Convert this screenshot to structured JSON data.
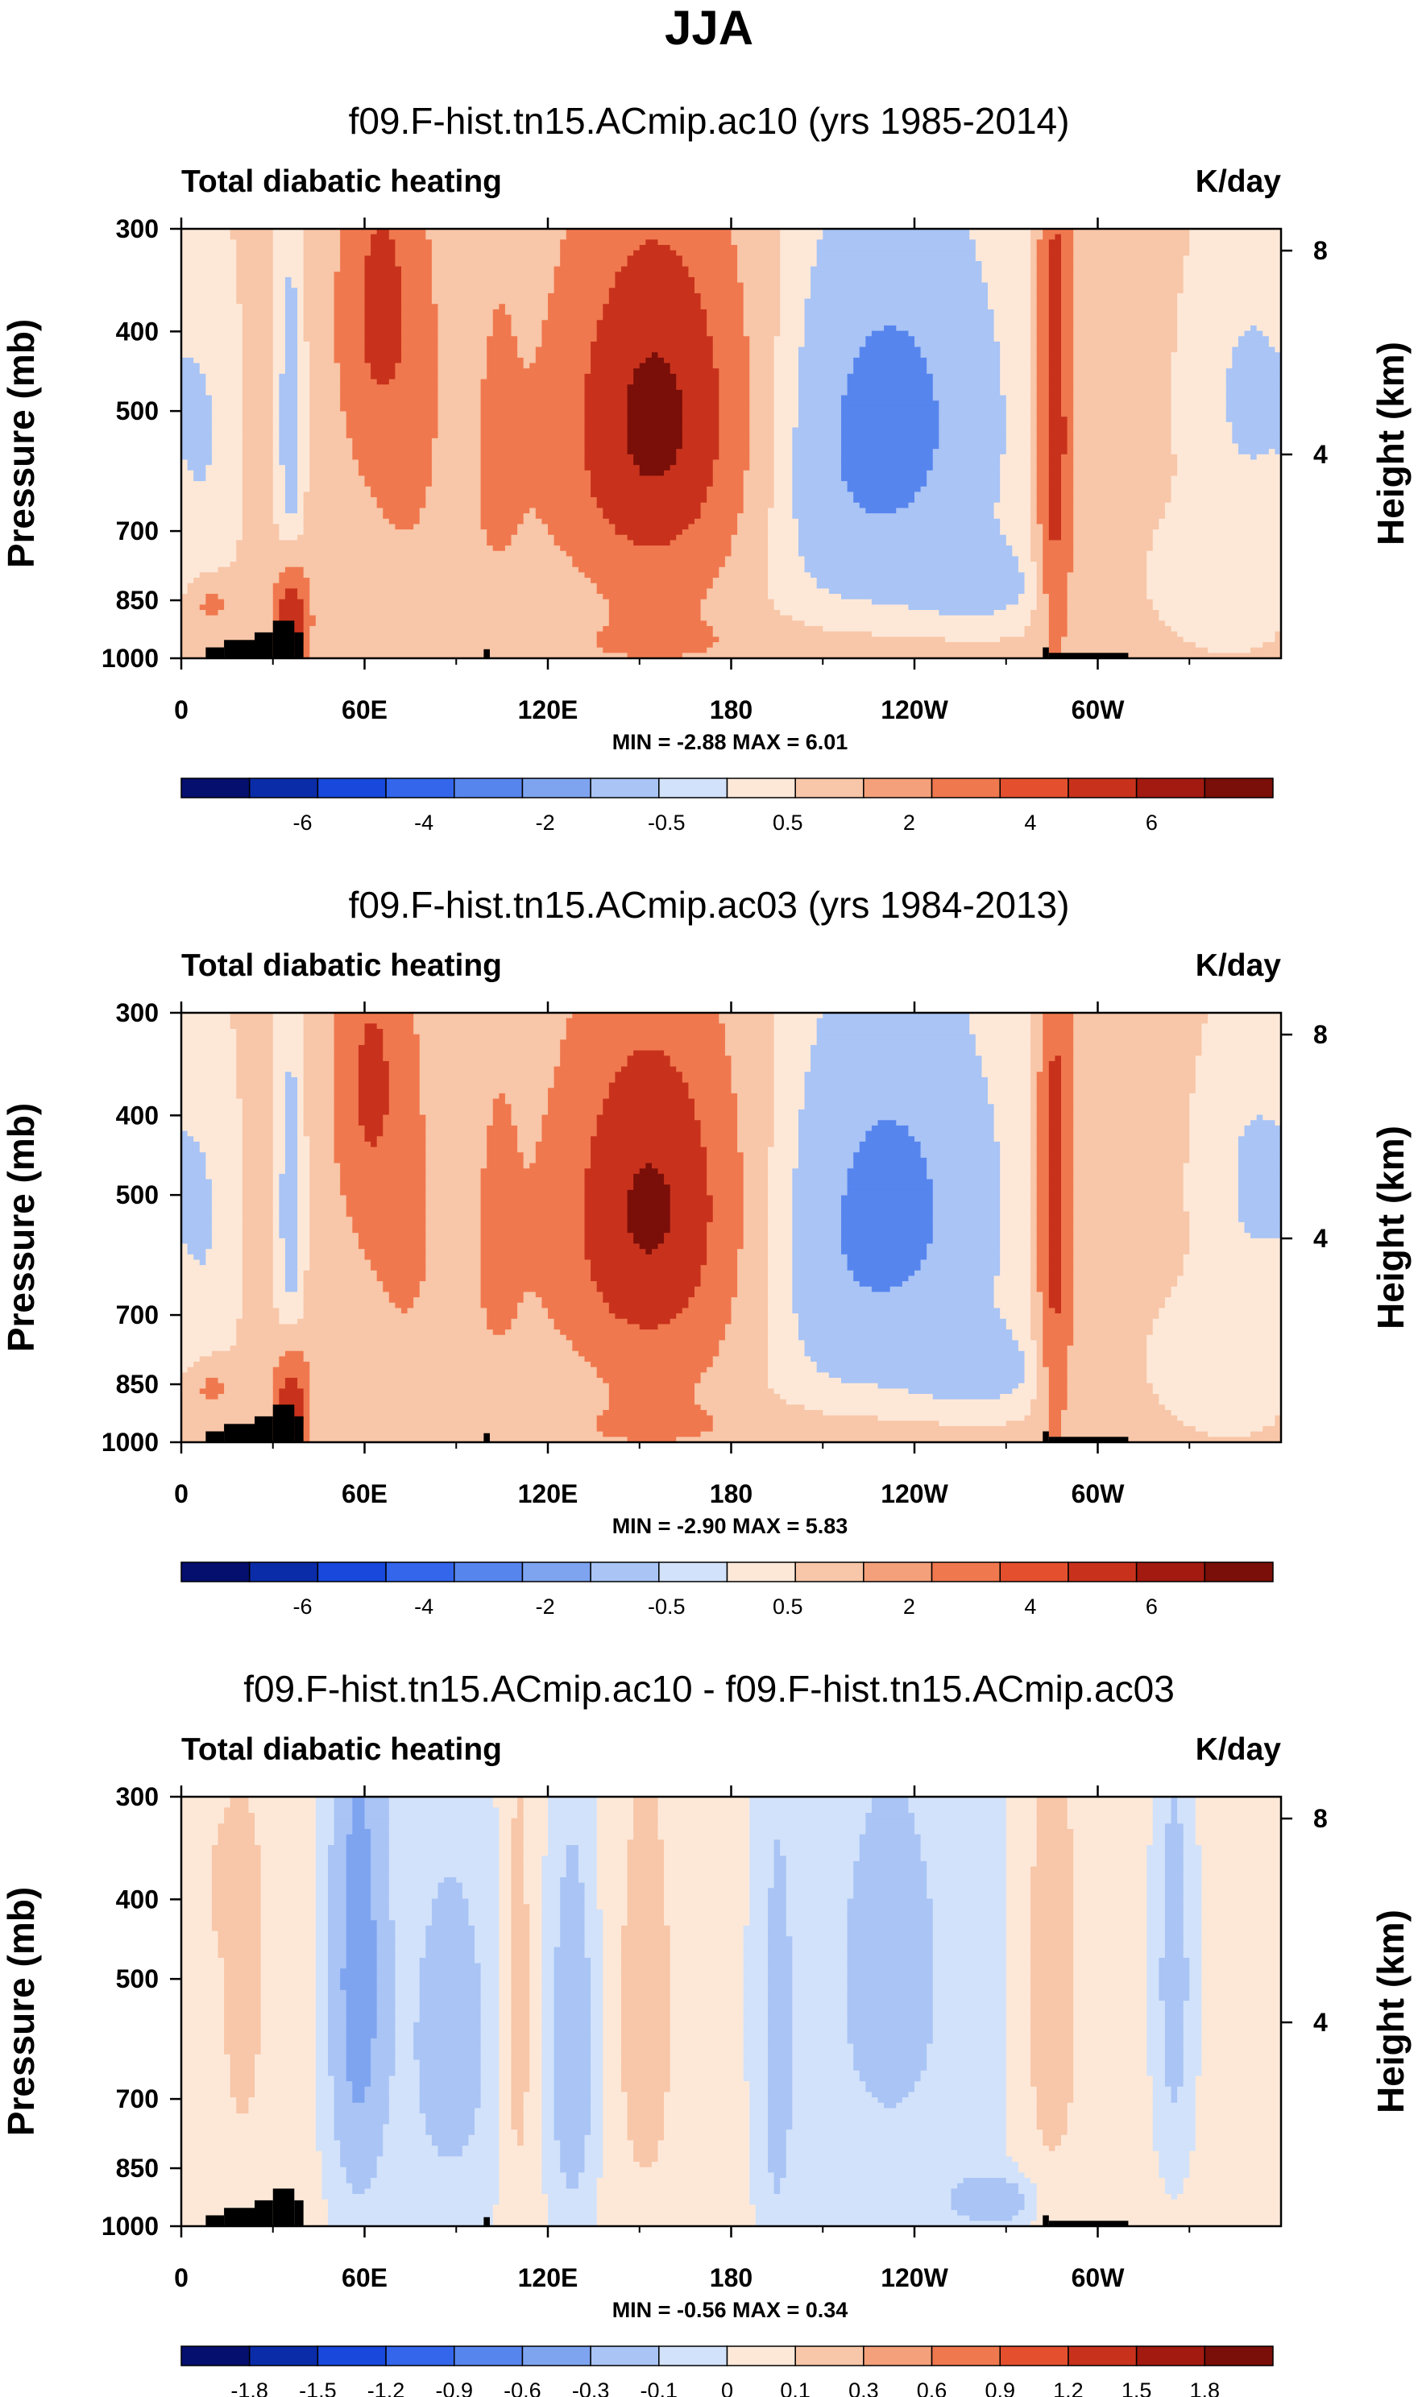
{
  "page_title": "JJA",
  "chart_data": [
    {
      "type": "heatmap",
      "title": "f09.F-hist.tn15.ACmip.ac10 (yrs 1985-2014)",
      "left_label": "Total diabatic heating",
      "right_label": "K/day",
      "ylabel": "Pressure (mb)",
      "y2label": "Height (km)",
      "xticks": [
        "0",
        "60E",
        "120E",
        "180",
        "120W",
        "60W"
      ],
      "xtick_lons": [
        0,
        60,
        120,
        180,
        240,
        300
      ],
      "xlim": [
        0,
        360
      ],
      "yticks": [
        "300",
        "400",
        "500",
        "700",
        "850",
        "1000"
      ],
      "ytick_values": [
        300,
        400,
        500,
        700,
        850,
        1000
      ],
      "ylim": [
        1000,
        300
      ],
      "y2ticks": [
        "8",
        "4"
      ],
      "y2tick_values": [
        8,
        4
      ],
      "stats": "MIN =  -2.88  MAX =  6.01",
      "min": -2.88,
      "max": 6.01,
      "colorbar_labels": [
        "-6",
        "-4",
        "-2",
        "-0.5",
        "0.5",
        "2",
        "4",
        "6"
      ],
      "colorbar_colors": [
        "#050f6e",
        "#0a2ca8",
        "#1848dc",
        "#3466ec",
        "#5785ee",
        "#7ea4f0",
        "#a9c4f5",
        "#d2e2fa",
        "#fde8d8",
        "#f8c6a8",
        "#f4a07a",
        "#f0784e",
        "#e4502e",
        "#c8321c",
        "#a21a10",
        "#7a0e08"
      ],
      "field": {
        "base": 0.6,
        "features": [
          {
            "lon": 156,
            "p": 500,
            "wl": 20,
            "wp": 175,
            "v": 4.6
          },
          {
            "lon": 150,
            "p": 640,
            "wl": 30,
            "wp": 300,
            "v": 1.6
          },
          {
            "lon": 65,
            "p": 370,
            "wl": 9,
            "wp": 110,
            "v": 3.2
          },
          {
            "lon": 72,
            "p": 600,
            "wl": 18,
            "wp": 300,
            "v": 1.4
          },
          {
            "lon": 36,
            "p": 900,
            "wl": 4,
            "wp": 90,
            "v": 5.4
          },
          {
            "lon": 36,
            "p": 520,
            "wl": 3,
            "wp": 170,
            "v": -2.2
          },
          {
            "lon": 8,
            "p": 560,
            "wl": 6,
            "wp": 160,
            "v": -0.9
          },
          {
            "lon": 10,
            "p": 860,
            "wl": 5,
            "wp": 40,
            "v": 2.0
          },
          {
            "lon": 232,
            "p": 520,
            "wl": 26,
            "wp": 210,
            "v": -3.1
          },
          {
            "lon": 262,
            "p": 820,
            "wl": 16,
            "wp": 70,
            "v": -1.3
          },
          {
            "lon": 286,
            "p": 520,
            "wl": 4,
            "wp": 300,
            "v": 4.8
          },
          {
            "lon": 300,
            "p": 700,
            "wl": 5,
            "wp": 150,
            "v": 1.5
          },
          {
            "lon": 350,
            "p": 480,
            "wl": 11,
            "wp": 120,
            "v": -1.4
          },
          {
            "lon": 342,
            "p": 800,
            "wl": 12,
            "wp": 90,
            "v": -1.0
          },
          {
            "lon": 104,
            "p": 560,
            "wl": 6,
            "wp": 300,
            "v": 0.9
          },
          {
            "lon": 118,
            "p": 850,
            "wl": 14,
            "wp": 70,
            "v": -0.8
          },
          {
            "lon": 205,
            "p": 760,
            "wl": 18,
            "wp": 200,
            "v": -0.6
          },
          {
            "lon": 180,
            "p": 960,
            "wl": 60,
            "wp": 50,
            "v": 0.8
          }
        ]
      },
      "terrain": [
        {
          "lon0": 8,
          "lon1": 14,
          "p": 970
        },
        {
          "lon0": 14,
          "lon1": 24,
          "p": 950
        },
        {
          "lon0": 24,
          "lon1": 30,
          "p": 930
        },
        {
          "lon0": 30,
          "lon1": 37,
          "p": 900
        },
        {
          "lon0": 37,
          "lon1": 40,
          "p": 930
        },
        {
          "lon0": 99,
          "lon1": 101,
          "p": 975
        },
        {
          "lon0": 282,
          "lon1": 284,
          "p": 970
        },
        {
          "lon0": 284,
          "lon1": 310,
          "p": 985
        }
      ]
    },
    {
      "type": "heatmap",
      "title": "f09.F-hist.tn15.ACmip.ac03 (yrs 1984-2013)",
      "left_label": "Total diabatic heating",
      "right_label": "K/day",
      "ylabel": "Pressure (mb)",
      "y2label": "Height (km)",
      "xticks": [
        "0",
        "60E",
        "120E",
        "180",
        "120W",
        "60W"
      ],
      "xtick_lons": [
        0,
        60,
        120,
        180,
        240,
        300
      ],
      "xlim": [
        0,
        360
      ],
      "yticks": [
        "300",
        "400",
        "500",
        "700",
        "850",
        "1000"
      ],
      "ytick_values": [
        300,
        400,
        500,
        700,
        850,
        1000
      ],
      "ylim": [
        1000,
        300
      ],
      "y2ticks": [
        "8",
        "4"
      ],
      "y2tick_values": [
        8,
        4
      ],
      "stats": "MIN =  -2.90  MAX =  5.83",
      "min": -2.9,
      "max": 5.83,
      "colorbar_labels": [
        "-6",
        "-4",
        "-2",
        "-0.5",
        "0.5",
        "2",
        "4",
        "6"
      ],
      "colorbar_colors": [
        "#050f6e",
        "#0a2ca8",
        "#1848dc",
        "#3466ec",
        "#5785ee",
        "#7ea4f0",
        "#a9c4f5",
        "#d2e2fa",
        "#fde8d8",
        "#f8c6a8",
        "#f4a07a",
        "#f0784e",
        "#e4502e",
        "#c8321c",
        "#a21a10",
        "#7a0e08"
      ],
      "field": {
        "base": 0.6,
        "features": [
          {
            "lon": 154,
            "p": 510,
            "wl": 19,
            "wp": 170,
            "v": 4.3
          },
          {
            "lon": 150,
            "p": 640,
            "wl": 30,
            "wp": 300,
            "v": 1.6
          },
          {
            "lon": 62,
            "p": 360,
            "wl": 8,
            "wp": 105,
            "v": 3.0
          },
          {
            "lon": 72,
            "p": 600,
            "wl": 18,
            "wp": 300,
            "v": 1.4
          },
          {
            "lon": 36,
            "p": 900,
            "wl": 4,
            "wp": 90,
            "v": 5.1
          },
          {
            "lon": 36,
            "p": 520,
            "wl": 3,
            "wp": 170,
            "v": -2.1
          },
          {
            "lon": 8,
            "p": 560,
            "wl": 6,
            "wp": 160,
            "v": -0.9
          },
          {
            "lon": 10,
            "p": 860,
            "wl": 5,
            "wp": 40,
            "v": 2.0
          },
          {
            "lon": 232,
            "p": 520,
            "wl": 26,
            "wp": 210,
            "v": -3.0
          },
          {
            "lon": 262,
            "p": 820,
            "wl": 16,
            "wp": 70,
            "v": -1.4
          },
          {
            "lon": 286,
            "p": 520,
            "wl": 4,
            "wp": 300,
            "v": 4.5
          },
          {
            "lon": 300,
            "p": 700,
            "wl": 5,
            "wp": 150,
            "v": 1.4
          },
          {
            "lon": 352,
            "p": 480,
            "wl": 10,
            "wp": 110,
            "v": -1.4
          },
          {
            "lon": 342,
            "p": 800,
            "wl": 12,
            "wp": 90,
            "v": -1.0
          },
          {
            "lon": 104,
            "p": 560,
            "wl": 6,
            "wp": 300,
            "v": 0.9
          },
          {
            "lon": 118,
            "p": 850,
            "wl": 14,
            "wp": 70,
            "v": -0.8
          },
          {
            "lon": 205,
            "p": 760,
            "wl": 18,
            "wp": 200,
            "v": -0.6
          },
          {
            "lon": 180,
            "p": 960,
            "wl": 60,
            "wp": 50,
            "v": 0.8
          }
        ]
      },
      "terrain": [
        {
          "lon0": 8,
          "lon1": 14,
          "p": 970
        },
        {
          "lon0": 14,
          "lon1": 24,
          "p": 950
        },
        {
          "lon0": 24,
          "lon1": 30,
          "p": 930
        },
        {
          "lon0": 30,
          "lon1": 37,
          "p": 900
        },
        {
          "lon0": 37,
          "lon1": 40,
          "p": 930
        },
        {
          "lon0": 99,
          "lon1": 101,
          "p": 975
        },
        {
          "lon0": 282,
          "lon1": 284,
          "p": 970
        },
        {
          "lon0": 284,
          "lon1": 310,
          "p": 985
        }
      ]
    },
    {
      "type": "heatmap",
      "title": "f09.F-hist.tn15.ACmip.ac10 - f09.F-hist.tn15.ACmip.ac03",
      "left_label": "Total diabatic heating",
      "right_label": "K/day",
      "ylabel": "Pressure (mb)",
      "y2label": "Height (km)",
      "xticks": [
        "0",
        "60E",
        "120E",
        "180",
        "120W",
        "60W"
      ],
      "xtick_lons": [
        0,
        60,
        120,
        180,
        240,
        300
      ],
      "xlim": [
        0,
        360
      ],
      "yticks": [
        "300",
        "400",
        "500",
        "700",
        "850",
        "1000"
      ],
      "ytick_values": [
        300,
        400,
        500,
        700,
        850,
        1000
      ],
      "ylim": [
        1000,
        300
      ],
      "y2ticks": [
        "8",
        "4"
      ],
      "y2tick_values": [
        8,
        4
      ],
      "stats": "MIN =  -0.56  MAX =  0.34",
      "min": -0.56,
      "max": 0.34,
      "colorbar_labels": [
        "-1.8",
        "-1.5",
        "-1.2",
        "-0.9",
        "-0.6",
        "-0.3",
        "-0.1",
        "0",
        "0.1",
        "0.3",
        "0.6",
        "0.9",
        "1.2",
        "1.5",
        "1.8"
      ],
      "colorbar_colors": [
        "#050f6e",
        "#0a2ca8",
        "#1848dc",
        "#3466ec",
        "#5785ee",
        "#7ea4f0",
        "#a9c4f5",
        "#d2e2fa",
        "#fde8d8",
        "#f8c6a8",
        "#f4a07a",
        "#f0784e",
        "#e4502e",
        "#c8321c",
        "#a21a10",
        "#7a0e08"
      ],
      "field": {
        "base": 0.02,
        "features": [
          {
            "lon": 58,
            "p": 500,
            "wl": 6,
            "wp": 250,
            "v": -0.45
          },
          {
            "lon": 88,
            "p": 600,
            "wl": 12,
            "wp": 250,
            "v": -0.18
          },
          {
            "lon": 128,
            "p": 620,
            "wl": 5,
            "wp": 230,
            "v": -0.25
          },
          {
            "lon": 110,
            "p": 560,
            "wl": 4,
            "wp": 280,
            "v": 0.15
          },
          {
            "lon": 152,
            "p": 560,
            "wl": 7,
            "wp": 260,
            "v": 0.15
          },
          {
            "lon": 195,
            "p": 650,
            "wl": 4,
            "wp": 300,
            "v": -0.15
          },
          {
            "lon": 232,
            "p": 500,
            "wl": 22,
            "wp": 320,
            "v": -0.15
          },
          {
            "lon": 285,
            "p": 520,
            "wl": 6,
            "wp": 220,
            "v": 0.2
          },
          {
            "lon": 325,
            "p": 500,
            "wl": 4,
            "wp": 200,
            "v": -0.2
          },
          {
            "lon": 20,
            "p": 550,
            "wl": 6,
            "wp": 200,
            "v": 0.12
          },
          {
            "lon": 265,
            "p": 930,
            "wl": 8,
            "wp": 40,
            "v": -0.3
          },
          {
            "lon": 15,
            "p": 380,
            "wl": 8,
            "wp": 60,
            "v": 0.08
          }
        ]
      },
      "terrain": [
        {
          "lon0": 8,
          "lon1": 14,
          "p": 970
        },
        {
          "lon0": 14,
          "lon1": 24,
          "p": 950
        },
        {
          "lon0": 24,
          "lon1": 30,
          "p": 930
        },
        {
          "lon0": 30,
          "lon1": 37,
          "p": 900
        },
        {
          "lon0": 37,
          "lon1": 40,
          "p": 930
        },
        {
          "lon0": 99,
          "lon1": 101,
          "p": 975
        },
        {
          "lon0": 282,
          "lon1": 284,
          "p": 970
        },
        {
          "lon0": 284,
          "lon1": 310,
          "p": 985
        }
      ]
    }
  ]
}
